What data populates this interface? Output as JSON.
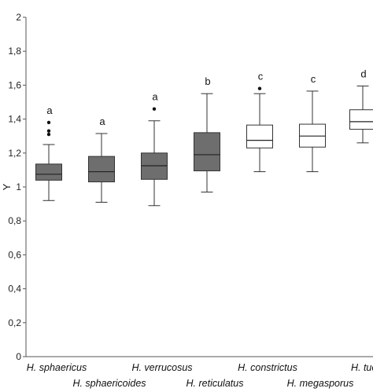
{
  "chart_data": {
    "type": "boxplot",
    "ylabel": "Y",
    "ylim": [
      0,
      2
    ],
    "yticks": [
      "0",
      "0,2",
      "0,4",
      "0,6",
      "0,8",
      "1",
      "1,2",
      "1,4",
      "1,6",
      "1,8",
      "2"
    ],
    "grid": false,
    "categories": [
      "H. sphaericus",
      "H. sphaericoides",
      "H. verrucosus",
      "H. reticulatus",
      "H. constrictus",
      "H. megasporus",
      "H. tucum"
    ],
    "boxes": [
      {
        "min": 0.92,
        "q1": 1.04,
        "median": 1.075,
        "q3": 1.135,
        "max": 1.25,
        "outliers": [
          1.31,
          1.33,
          1.38
        ],
        "letter": "a",
        "fill": "#6e6e6e"
      },
      {
        "min": 0.91,
        "q1": 1.03,
        "median": 1.09,
        "q3": 1.18,
        "max": 1.315,
        "outliers": [],
        "letter": "a",
        "fill": "#6e6e6e"
      },
      {
        "min": 0.89,
        "q1": 1.045,
        "median": 1.125,
        "q3": 1.2,
        "max": 1.39,
        "outliers": [
          1.46
        ],
        "letter": "a",
        "fill": "#6e6e6e"
      },
      {
        "min": 0.97,
        "q1": 1.095,
        "median": 1.19,
        "q3": 1.32,
        "max": 1.55,
        "outliers": [],
        "letter": "b",
        "fill": "#6e6e6e"
      },
      {
        "min": 1.09,
        "q1": 1.23,
        "median": 1.275,
        "q3": 1.365,
        "max": 1.55,
        "outliers": [
          1.58
        ],
        "letter": "c",
        "fill": "#ffffff"
      },
      {
        "min": 1.09,
        "q1": 1.235,
        "median": 1.3,
        "q3": 1.37,
        "max": 1.565,
        "outliers": [],
        "letter": "c",
        "fill": "#ffffff"
      },
      {
        "min": 1.26,
        "q1": 1.34,
        "median": 1.385,
        "q3": 1.455,
        "max": 1.595,
        "outliers": [],
        "letter": "d",
        "fill": "#ffffff"
      }
    ]
  }
}
